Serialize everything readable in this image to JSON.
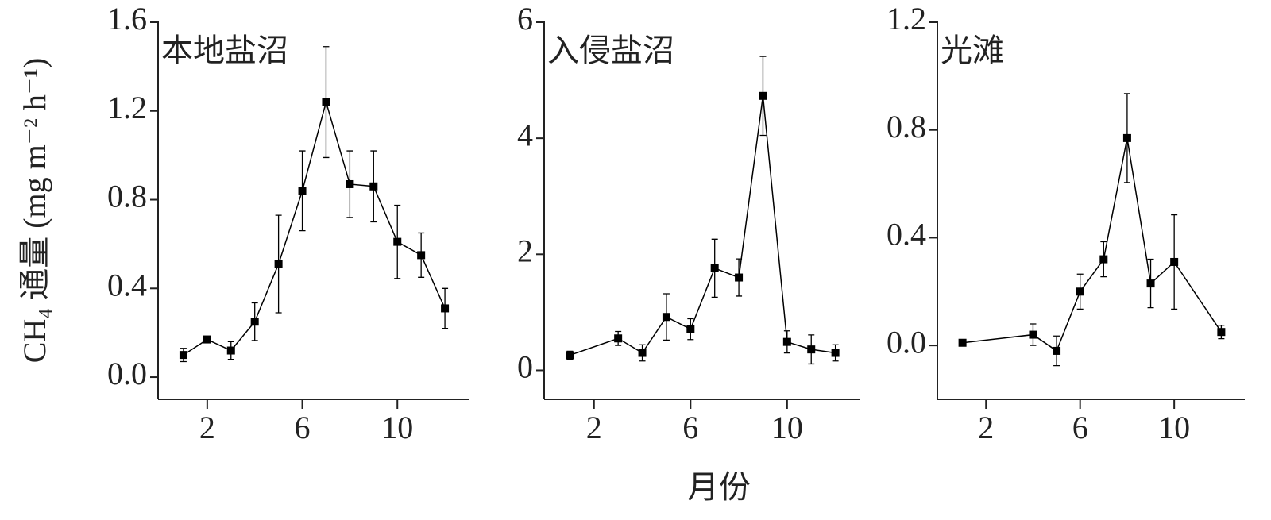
{
  "y_label": "CH₄ 通量 (mg m⁻² h⁻¹)",
  "x_label": "月份",
  "chart_data": [
    {
      "type": "line",
      "title": "本地盐沼",
      "color": "#000000",
      "x": [
        1,
        2,
        3,
        4,
        5,
        6,
        7,
        8,
        9,
        10,
        11,
        12
      ],
      "values": [
        0.1,
        0.17,
        0.12,
        0.25,
        0.51,
        0.84,
        1.24,
        0.87,
        0.86,
        0.61,
        0.55,
        0.31
      ],
      "errors": [
        0.03,
        0.01,
        0.04,
        0.085,
        0.22,
        0.18,
        0.25,
        0.15,
        0.16,
        0.165,
        0.1,
        0.09
      ],
      "xlim": [
        0,
        13
      ],
      "xticks": [
        2,
        6,
        10
      ],
      "ylim": [
        -0.1,
        1.6
      ],
      "yticks": [
        {
          "value": 0,
          "label": "0.0"
        },
        0.4,
        0.8,
        1.2,
        1.6
      ]
    },
    {
      "type": "line",
      "title": "入侵盐沼",
      "color": "#000000",
      "x": [
        1,
        3,
        4,
        5,
        6,
        7,
        8,
        9,
        10,
        11,
        12
      ],
      "values": [
        0.26,
        0.55,
        0.3,
        0.92,
        0.71,
        1.76,
        1.6,
        4.73,
        0.49,
        0.36,
        0.3
      ],
      "errors": [
        0.07,
        0.12,
        0.14,
        0.4,
        0.18,
        0.5,
        0.32,
        0.68,
        0.19,
        0.25,
        0.14
      ],
      "xlim": [
        0,
        13
      ],
      "xticks": [
        2,
        6,
        10
      ],
      "ylim": [
        -0.5,
        6
      ],
      "yticks": [
        0,
        2,
        4,
        6
      ]
    },
    {
      "type": "line",
      "title": "光滩",
      "color": "#000000",
      "x": [
        1,
        4,
        5,
        6,
        7,
        8,
        9,
        10,
        12
      ],
      "values": [
        0.01,
        0.04,
        -0.02,
        0.2,
        0.32,
        0.77,
        0.23,
        0.31,
        0.05
      ],
      "errors": [
        0.01,
        0.04,
        0.055,
        0.065,
        0.065,
        0.165,
        0.09,
        0.175,
        0.025
      ],
      "xlim": [
        0,
        13
      ],
      "xticks": [
        2,
        6,
        10
      ],
      "ylim": [
        -0.2,
        1.2
      ],
      "yticks": [
        {
          "value": 0,
          "label": "0.0"
        },
        0.4,
        0.8,
        1.2
      ]
    }
  ]
}
